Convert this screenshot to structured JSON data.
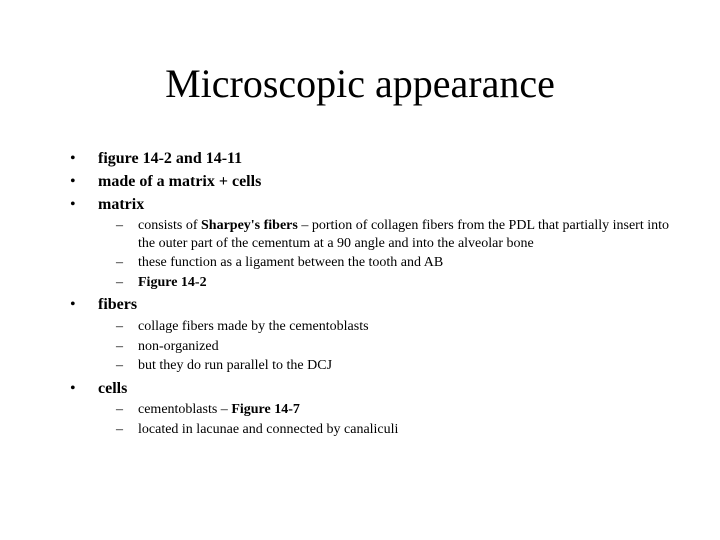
{
  "title": "Microscopic appearance",
  "typography": {
    "title_fontsize": 40,
    "l1_fontsize": 16,
    "l2_fontsize": 14,
    "font_family": "Times New Roman",
    "text_color": "#000000",
    "background_color": "#ffffff"
  },
  "bullets": {
    "l1_marker": "•",
    "l2_marker": "–",
    "item0": "figure 14-2 and 14-11",
    "item1": "made of a matrix + cells",
    "item2": "matrix",
    "item2_sub0_a": "consists of ",
    "item2_sub0_b": "Sharpey's fibers",
    "item2_sub0_c": " – portion of collagen fibers from the PDL that partially insert into the outer part of the cementum at a 90 angle and into the alveolar bone",
    "item2_sub1": "these function as a ligament between the tooth and AB",
    "item2_sub2": "Figure 14-2",
    "item3": "fibers",
    "item3_sub0": "collage fibers made by the cementoblasts",
    "item3_sub1": "non-organized",
    "item3_sub2": "but they do run parallel to the DCJ",
    "item4": "cells",
    "item4_sub0_a": "cementoblasts – ",
    "item4_sub0_b": "Figure 14-7",
    "item4_sub1": "located in lacunae and connected by canaliculi"
  }
}
